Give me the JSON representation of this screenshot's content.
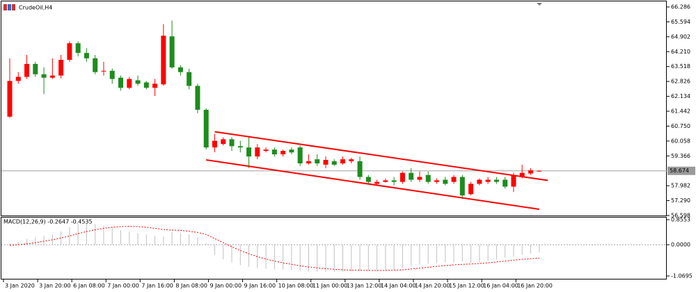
{
  "chart_data": [
    {
      "type": "candlestick",
      "title": "CrudeOil,H4",
      "categories": [
        "3 Jan 2020",
        null,
        null,
        null,
        "3 Jan 20:00",
        null,
        null,
        null,
        "6 Jan 08:00",
        null,
        null,
        null,
        "7 Jan 00:00",
        null,
        null,
        null,
        "7 Jan 16:00",
        null,
        null,
        null,
        "8 Jan 08:00",
        null,
        null,
        null,
        "9 Jan 00:00",
        null,
        null,
        null,
        "9 Jan 16:00",
        null,
        null,
        null,
        "10 Jan 08:00",
        null,
        null,
        null,
        "11 Jan 00:00",
        null,
        null,
        null,
        "13 Jan 12:00",
        null,
        null,
        null,
        "14 Jan 04:00",
        null,
        null,
        null,
        "14 Jan 20:00",
        null,
        null,
        null,
        "15 Jan 12:00",
        null,
        null,
        null,
        "16 Jan 04:00",
        null,
        null,
        null,
        "16 Jan 20:00",
        null,
        null
      ],
      "open": [
        61.19,
        62.85,
        63.04,
        63.64,
        63.16,
        63.0,
        63.1,
        63.83,
        64.6,
        64.15,
        63.9,
        63.29,
        63.32,
        63.0,
        62.53,
        62.88,
        62.78,
        62.53,
        62.69,
        64.92,
        63.48,
        63.26,
        62.62,
        61.51,
        59.76,
        59.92,
        60.14,
        59.82,
        59.76,
        59.34,
        59.6,
        59.66,
        59.44,
        59.66,
        59.76,
        59.02,
        59.21,
        58.96,
        59.12,
        59.02,
        59.12,
        59.12,
        58.39,
        58.07,
        58.16,
        58.23,
        58.16,
        58.58,
        58.26,
        58.48,
        58.16,
        58.26,
        58.16,
        58.39,
        57.59,
        58.07,
        58.16,
        58.26,
        58.26,
        57.94,
        58.42,
        58.55,
        58.67
      ],
      "high": [
        63.9,
        63.26,
        64.06,
        63.74,
        63.48,
        63.9,
        64.06,
        64.69,
        64.69,
        64.37,
        64.06,
        63.74,
        63.42,
        63.1,
        63.04,
        63.1,
        62.85,
        62.94,
        65.49,
        65.65,
        63.58,
        63.42,
        62.72,
        61.57,
        60.39,
        60.23,
        60.23,
        60.07,
        60.23,
        59.92,
        59.76,
        59.76,
        59.66,
        59.76,
        59.85,
        59.44,
        59.44,
        59.34,
        59.21,
        59.34,
        59.28,
        59.34,
        58.48,
        58.26,
        58.32,
        58.39,
        58.64,
        58.8,
        58.64,
        58.64,
        58.32,
        58.39,
        58.48,
        58.48,
        58.16,
        58.32,
        58.39,
        58.39,
        58.39,
        58.58,
        58.96,
        58.8,
        58.7
      ],
      "low": [
        61.13,
        62.72,
        62.94,
        63.04,
        62.24,
        62.94,
        62.97,
        63.74,
        63.99,
        63.74,
        63.16,
        63.1,
        62.72,
        62.4,
        62.46,
        62.62,
        62.46,
        62.15,
        62.62,
        63.42,
        63.1,
        62.46,
        61.35,
        59.66,
        59.53,
        59.85,
        59.6,
        59.53,
        58.8,
        59.21,
        59.53,
        59.34,
        59.34,
        59.44,
        58.9,
        58.96,
        58.9,
        58.8,
        58.9,
        58.96,
        59.02,
        58.26,
        58.07,
        58.0,
        58.13,
        58.0,
        58.07,
        58.16,
        58.16,
        58.07,
        58.07,
        58.0,
        58.07,
        57.37,
        57.53,
        58.0,
        58.07,
        58.07,
        57.85,
        57.69,
        58.32,
        58.48,
        58.64
      ],
      "close": [
        62.85,
        63.04,
        63.64,
        63.16,
        63.0,
        63.1,
        63.83,
        64.6,
        64.15,
        63.9,
        63.26,
        63.32,
        62.94,
        62.53,
        62.94,
        62.72,
        62.53,
        62.72,
        64.95,
        63.48,
        63.26,
        62.62,
        61.51,
        59.76,
        60.07,
        60.14,
        59.82,
        59.76,
        59.34,
        59.76,
        59.66,
        59.44,
        59.6,
        59.53,
        59.02,
        59.12,
        59.02,
        59.18,
        58.96,
        59.21,
        59.21,
        58.39,
        58.16,
        58.16,
        58.23,
        58.16,
        58.58,
        58.26,
        58.39,
        58.16,
        58.23,
        58.07,
        58.39,
        57.53,
        58.07,
        58.26,
        58.26,
        58.16,
        57.94,
        58.48,
        58.58,
        58.7,
        58.674
      ],
      "up_color": "#ff0000",
      "down_color": "#1e8c1e",
      "ylim": [
        56.598,
        66.286
      ],
      "yticks": [
        66.286,
        65.594,
        64.902,
        {
          "value": 64.21,
          "label": "64.210"
        },
        63.518,
        62.826,
        62.134,
        61.442,
        {
          "value": 60.75,
          "label": "60.750"
        },
        60.058,
        59.366,
        57.982,
        {
          "value": 57.29,
          "label": "57.290"
        },
        56.598
      ],
      "current_price": {
        "value": 58.674,
        "label": "58.674"
      },
      "trendlines": [
        {
          "start": [
            24,
            60.49
          ],
          "end": [
            63,
            58.23
          ],
          "color": "#ff0000"
        },
        {
          "start": [
            23,
            59.18
          ],
          "end": [
            62,
            56.89
          ],
          "color": "#ff0000"
        }
      ]
    },
    {
      "type": "macd",
      "title": "MACD(12,26,9) -0.2647 -0.4535",
      "histogram": [
        0.05,
        0.1,
        0.2,
        0.25,
        0.3,
        0.35,
        0.45,
        0.6,
        0.7,
        0.72,
        0.7,
        0.65,
        0.6,
        0.5,
        0.45,
        0.4,
        0.35,
        0.3,
        0.28,
        0.45,
        0.4,
        0.35,
        0.25,
        0.05,
        -0.35,
        -0.5,
        -0.6,
        -0.7,
        -0.75,
        -0.8,
        -0.82,
        -0.85,
        -0.85,
        -0.87,
        -0.9,
        -0.92,
        -0.92,
        -0.93,
        -0.93,
        -0.92,
        -0.9,
        -0.88,
        -0.9,
        -0.92,
        -0.9,
        -0.85,
        -0.8,
        -0.72,
        -0.68,
        -0.65,
        -0.62,
        -0.6,
        -0.6,
        -0.58,
        -0.62,
        -0.6,
        -0.55,
        -0.5,
        -0.45,
        -0.42,
        -0.35,
        -0.3,
        -0.2647
      ],
      "signal": [
        -0.02,
        0.0,
        0.03,
        0.07,
        0.12,
        0.17,
        0.23,
        0.3,
        0.38,
        0.45,
        0.51,
        0.56,
        0.6,
        0.62,
        0.63,
        0.62,
        0.6,
        0.56,
        0.52,
        0.5,
        0.49,
        0.46,
        0.42,
        0.35,
        0.21,
        0.07,
        -0.07,
        -0.2,
        -0.31,
        -0.41,
        -0.49,
        -0.56,
        -0.62,
        -0.67,
        -0.72,
        -0.76,
        -0.79,
        -0.82,
        -0.84,
        -0.86,
        -0.87,
        -0.87,
        -0.88,
        -0.88,
        -0.88,
        -0.87,
        -0.86,
        -0.83,
        -0.8,
        -0.77,
        -0.74,
        -0.71,
        -0.69,
        -0.67,
        -0.66,
        -0.64,
        -0.62,
        -0.59,
        -0.56,
        -0.53,
        -0.5,
        -0.48,
        -0.4535
      ],
      "histogram_color": "#c0c0c0",
      "signal_color": "#ff0000",
      "ylim": [
        -1.0695,
        0.8553
      ],
      "yticks": [
        0.8553,
        {
          "value": 0,
          "label": "0.0000"
        },
        -1.0695
      ]
    }
  ]
}
